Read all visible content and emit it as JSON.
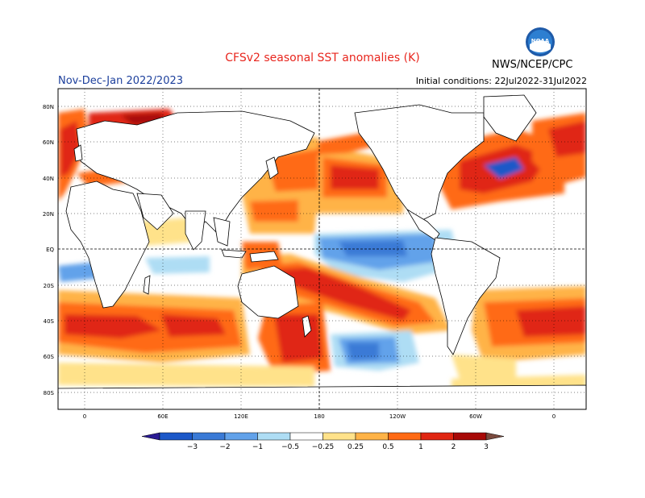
{
  "title": "CFSv2 seasonal SST anomalies (K)",
  "subtitle": "Nov-Dec-Jan 2022/2023",
  "initial_conditions": "Initial conditions: 22Jul2022-31Jul2022",
  "agency": "NWS/NCEP/CPC",
  "logo_text": "NOAA",
  "lat_labels": [
    "80N",
    "60N",
    "40N",
    "20N",
    "EQ",
    "20S",
    "40S",
    "60S",
    "80S"
  ],
  "lon_labels": [
    "0",
    "60E",
    "120E",
    "180",
    "120W",
    "60W",
    "0"
  ],
  "colorbar": {
    "labels": [
      "−3",
      "−2",
      "−1",
      "−0.5",
      "−0.25",
      "0.25",
      "0.5",
      "1",
      "2",
      "3"
    ],
    "colors": [
      "#2a1b94",
      "#1c58c8",
      "#3a7ad6",
      "#62a2ea",
      "#aeddf4",
      "#ffffff",
      "#ffe28a",
      "#ffb347",
      "#ff6a14",
      "#e02612",
      "#a80a08",
      "#7a4a3e"
    ]
  },
  "colors": {
    "ocean_neutral": "#ffffff",
    "land": "#ffffff",
    "title": "#e8261e",
    "subtitle": "#1c3f9c",
    "warm_light": "#ffe28a",
    "warm_mid": "#ff6a14",
    "warm_strong": "#e02612",
    "cool_light": "#aeddf4",
    "cool_mid": "#62a2ea",
    "cool_strong": "#1c58c8"
  }
}
